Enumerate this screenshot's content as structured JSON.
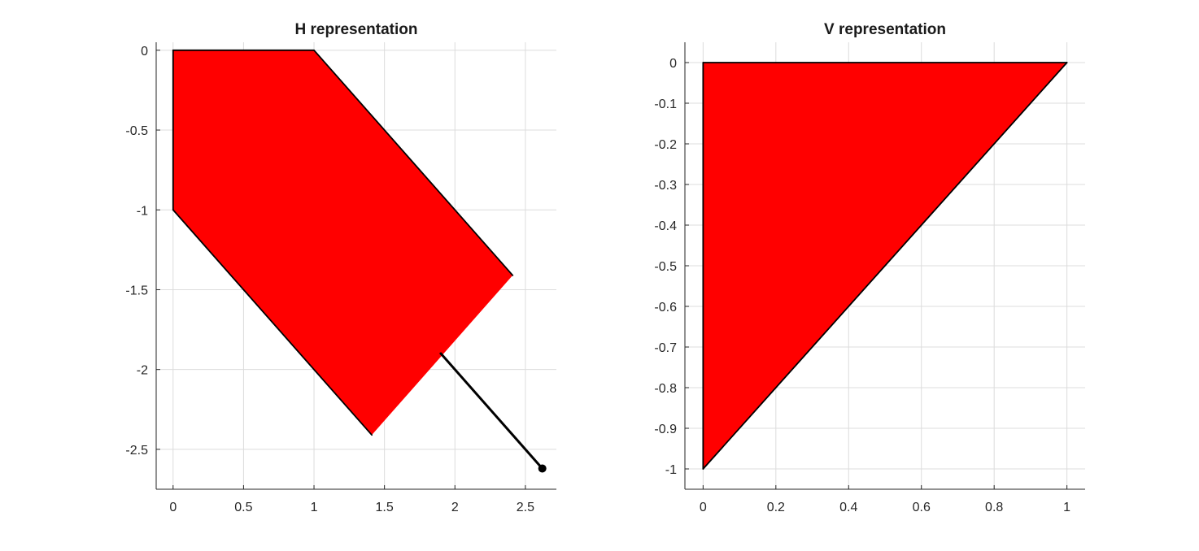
{
  "chart_data": [
    {
      "type": "area",
      "title": "H representation",
      "xlabel": "",
      "ylabel": "",
      "xlim": [
        -0.12,
        2.72
      ],
      "ylim": [
        -2.75,
        0.05
      ],
      "xticks": [
        0,
        0.5,
        1,
        1.5,
        2,
        2.5
      ],
      "xtick_labels": [
        "0",
        "0.5",
        "1",
        "1.5",
        "2",
        "2.5"
      ],
      "yticks": [
        0,
        -0.5,
        -1,
        -1.5,
        -2,
        -2.5
      ],
      "ytick_labels": [
        "0",
        "-0.5",
        "-1",
        "-1.5",
        "-2",
        "-2.5"
      ],
      "grid": true,
      "fill_color": "#ff0000",
      "edge_color": "#000000",
      "polygon": {
        "x": [
          0,
          1,
          2.41,
          1.41,
          0
        ],
        "y": [
          0,
          0,
          -1.41,
          -2.41,
          -1
        ]
      },
      "outlined_edges": [
        [
          0,
          1
        ],
        [
          1,
          2
        ],
        [
          3,
          4
        ],
        [
          4,
          0
        ]
      ],
      "segment": {
        "x": [
          1.9,
          2.62
        ],
        "y": [
          -1.9,
          -2.62
        ]
      },
      "point": {
        "x": 2.62,
        "y": -2.62
      }
    },
    {
      "type": "area",
      "title": "V representation",
      "xlabel": "",
      "ylabel": "",
      "xlim": [
        -0.05,
        1.05
      ],
      "ylim": [
        -1.05,
        0.05
      ],
      "xticks": [
        0,
        0.2,
        0.4,
        0.6,
        0.8,
        1
      ],
      "xtick_labels": [
        "0",
        "0.2",
        "0.4",
        "0.6",
        "0.8",
        "1"
      ],
      "yticks": [
        0,
        -0.1,
        -0.2,
        -0.3,
        -0.4,
        -0.5,
        -0.6,
        -0.7,
        -0.8,
        -0.9,
        -1
      ],
      "ytick_labels": [
        "0",
        "-0.1",
        "-0.2",
        "-0.3",
        "-0.4",
        "-0.5",
        "-0.6",
        "-0.7",
        "-0.8",
        "-0.9",
        "-1"
      ],
      "grid": true,
      "fill_color": "#ff0000",
      "edge_color": "#000000",
      "polygon": {
        "x": [
          0,
          1,
          0
        ],
        "y": [
          0,
          0,
          -1
        ]
      },
      "outlined_edges": [
        [
          0,
          1
        ],
        [
          1,
          2
        ],
        [
          2,
          0
        ]
      ]
    }
  ]
}
